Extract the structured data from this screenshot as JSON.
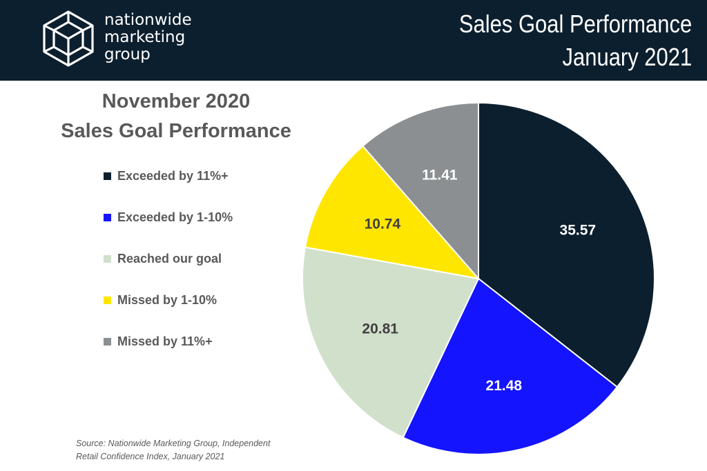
{
  "header": {
    "logo_lines": [
      "nationwide",
      "marketing",
      "group"
    ],
    "title_lines": [
      "Sales Goal Performance",
      "January 2021"
    ]
  },
  "chart_data": {
    "type": "pie",
    "title_lines": [
      "November 2020",
      "Sales Goal Performance"
    ],
    "start_angle_deg": 0,
    "direction": "clockwise",
    "legend_position": "left",
    "slices": [
      {
        "label": "Exceeded by 11%+",
        "value": 35.57,
        "value_text": "35.57",
        "color": "#0c1f2e",
        "label_color": "#ffffff"
      },
      {
        "label": "Exceeded by 1-10%",
        "value": 21.48,
        "value_text": "21.48",
        "color": "#1414ff",
        "label_color": "#ffffff"
      },
      {
        "label": "Reached our goal",
        "value": 20.81,
        "value_text": "20.81",
        "color": "#d1e0cb",
        "label_color": "#404040"
      },
      {
        "label": "Missed by 1-10%",
        "value": 10.74,
        "value_text": "10.74",
        "color": "#ffe600",
        "label_color": "#404040"
      },
      {
        "label": "Missed by 11%+",
        "value": 11.41,
        "value_text": "11.41",
        "color": "#8c8f91",
        "label_color": "#ffffff"
      }
    ]
  },
  "source": {
    "lines": [
      "Source: Nationwide Marketing Group, Independent",
      "Retail Confidence Index, January 2021"
    ]
  }
}
